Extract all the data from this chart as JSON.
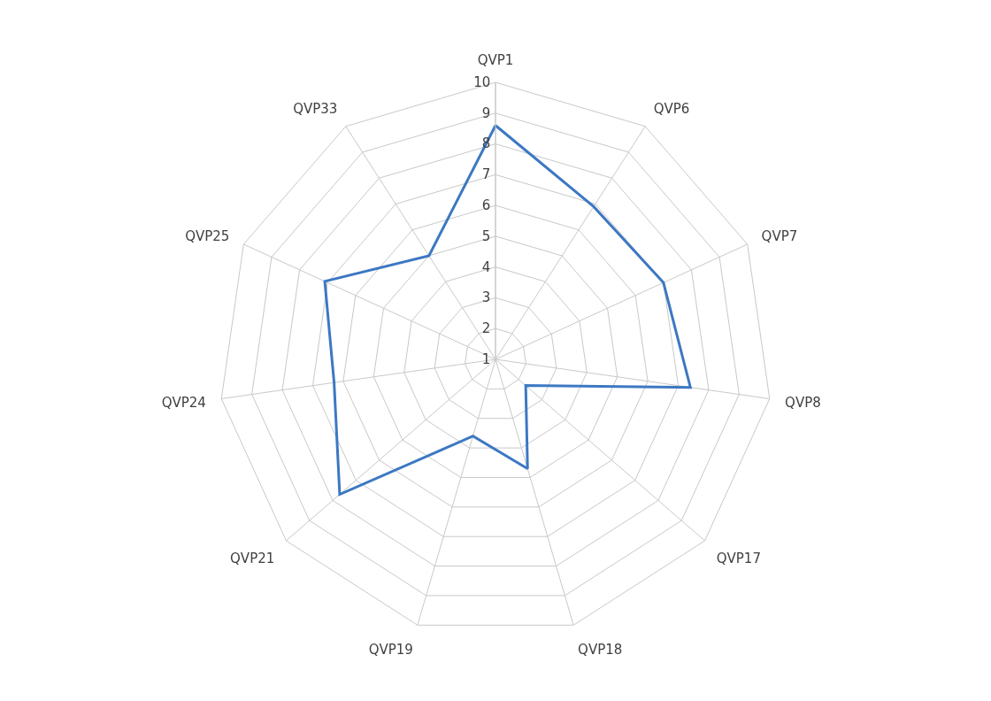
{
  "chart_data": {
    "type": "radar",
    "categories": [
      "QVP1",
      "QVP6",
      "QVP7",
      "QVP8",
      "QVP17",
      "QVP18",
      "QVP19",
      "QVP21",
      "QVP24",
      "QVP25",
      "QVP33"
    ],
    "series": [
      {
        "color": "#3c78c3",
        "values": [
          8.6,
          6.9,
          7.0,
          7.4,
          2.3,
          4.7,
          3.6,
          7.7,
          6.3,
          7.1,
          5.0
        ]
      }
    ],
    "ylim": [
      1,
      10
    ],
    "yticks": [
      1,
      2,
      3,
      4,
      5,
      6,
      7,
      8,
      9,
      10
    ],
    "grid": true,
    "marker": "none",
    "line_style": "solid"
  }
}
